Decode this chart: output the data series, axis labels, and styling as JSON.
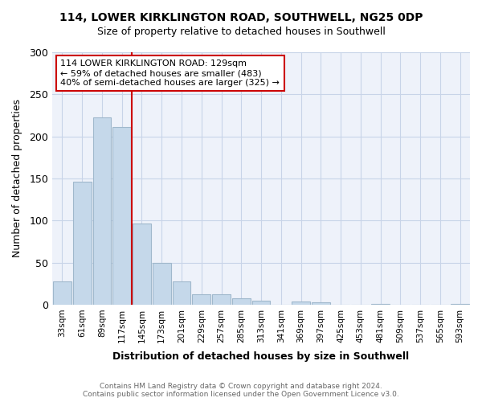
{
  "title1": "114, LOWER KIRKLINGTON ROAD, SOUTHWELL, NG25 0DP",
  "title2": "Size of property relative to detached houses in Southwell",
  "xlabel": "Distribution of detached houses by size in Southwell",
  "ylabel": "Number of detached properties",
  "bar_labels": [
    "33sqm",
    "61sqm",
    "89sqm",
    "117sqm",
    "145sqm",
    "173sqm",
    "201sqm",
    "229sqm",
    "257sqm",
    "285sqm",
    "313sqm",
    "341sqm",
    "369sqm",
    "397sqm",
    "425sqm",
    "453sqm",
    "481sqm",
    "509sqm",
    "537sqm",
    "565sqm",
    "593sqm"
  ],
  "bar_values": [
    28,
    146,
    223,
    211,
    96,
    50,
    28,
    12,
    12,
    8,
    5,
    0,
    4,
    3,
    0,
    0,
    1,
    0,
    0,
    0,
    1
  ],
  "bar_color": "#c5d8ea",
  "bar_edge_color": "#a0b8cc",
  "vline_x": 3.5,
  "vline_color": "#cc0000",
  "annotation_line1": "114 LOWER KIRKLINGTON ROAD: 129sqm",
  "annotation_line2": "← 59% of detached houses are smaller (483)",
  "annotation_line3": "40% of semi-detached houses are larger (325) →",
  "annotation_box_color": "#ffffff",
  "annotation_box_edge": "#cc0000",
  "ylim": [
    0,
    300
  ],
  "yticks": [
    0,
    50,
    100,
    150,
    200,
    250,
    300
  ],
  "footer_text": "Contains HM Land Registry data © Crown copyright and database right 2024.\nContains public sector information licensed under the Open Government Licence v3.0.",
  "bg_color": "#f7f9ff",
  "grid_color": "#c8d4e8",
  "plot_bg_color": "#eef2fa"
}
